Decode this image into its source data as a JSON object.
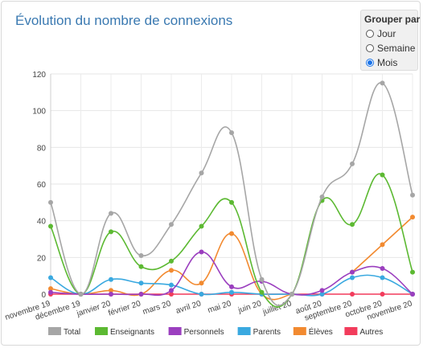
{
  "title": "Évolution du nombre de connexions",
  "group_by": {
    "label": "Grouper par :",
    "options": [
      "Jour",
      "Semaine",
      "Mois"
    ],
    "selected": "Mois"
  },
  "chart_data": {
    "type": "line",
    "categories": [
      "novembre 19",
      "décembre 19",
      "janvier 20",
      "février 20",
      "mars 20",
      "avril 20",
      "mai 20",
      "juin 20",
      "juillet 20",
      "août 20",
      "septembre 20",
      "octobre 20",
      "novembre 20"
    ],
    "ylim": [
      0,
      120
    ],
    "yticks": [
      0,
      20,
      40,
      60,
      80,
      100,
      120
    ],
    "grid": true,
    "legend_position": "bottom",
    "series": [
      {
        "name": "Total",
        "color": "#a6a6a6",
        "values": [
          50,
          0,
          44,
          21,
          38,
          66,
          88,
          8,
          0,
          53,
          71,
          115,
          54
        ]
      },
      {
        "name": "Enseignants",
        "color": "#5cb932",
        "values": [
          37,
          0,
          34,
          15,
          18,
          37,
          50,
          1,
          0,
          51,
          38,
          65,
          12
        ]
      },
      {
        "name": "Personnels",
        "color": "#9b3fbf",
        "values": [
          1,
          0,
          0,
          0,
          2,
          23,
          4,
          7,
          0,
          2,
          12,
          14,
          0
        ]
      },
      {
        "name": "Parents",
        "color": "#3aa9e0",
        "values": [
          9,
          0,
          8,
          6,
          5,
          0,
          1,
          0,
          0,
          0,
          9,
          9,
          0
        ]
      },
      {
        "name": "Élèves",
        "color": "#f28a30",
        "values": [
          3,
          0,
          2,
          0,
          13,
          6,
          33,
          0,
          0,
          null,
          12,
          27,
          42
        ]
      },
      {
        "name": "Autres",
        "color": "#f23c5c",
        "values": [
          0,
          0,
          0,
          0,
          0,
          0,
          0,
          0,
          0,
          0,
          0,
          0,
          0
        ]
      }
    ]
  }
}
